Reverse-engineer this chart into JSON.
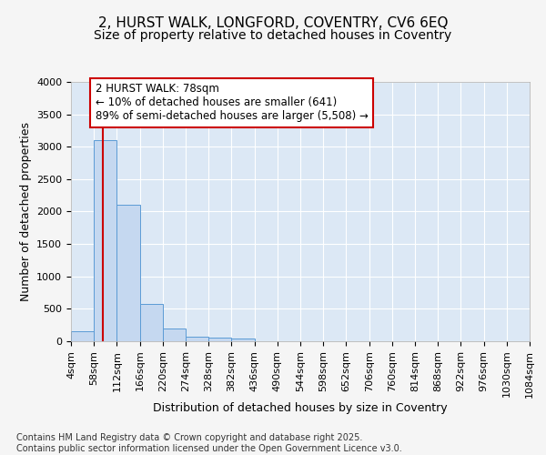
{
  "title1": "2, HURST WALK, LONGFORD, COVENTRY, CV6 6EQ",
  "title2": "Size of property relative to detached houses in Coventry",
  "xlabel": "Distribution of detached houses by size in Coventry",
  "ylabel": "Number of detached properties",
  "footnote1": "Contains HM Land Registry data © Crown copyright and database right 2025.",
  "footnote2": "Contains public sector information licensed under the Open Government Licence v3.0.",
  "bin_edges": [
    4,
    58,
    112,
    166,
    220,
    274,
    328,
    382,
    436,
    490,
    544,
    598,
    652,
    706,
    760,
    814,
    868,
    922,
    976,
    1030,
    1084
  ],
  "bar_heights": [
    150,
    3100,
    2100,
    580,
    200,
    70,
    50,
    40,
    0,
    0,
    0,
    0,
    0,
    0,
    0,
    0,
    0,
    0,
    0,
    0
  ],
  "bar_color": "#c5d8f0",
  "bar_edge_color": "#5b9bd5",
  "red_line_x": 78,
  "annotation_line1": "2 HURST WALK: 78sqm",
  "annotation_line2": "← 10% of detached houses are smaller (641)",
  "annotation_line3": "89% of semi-detached houses are larger (5,508) →",
  "annotation_box_facecolor": "#ffffff",
  "annotation_border_color": "#cc0000",
  "red_line_color": "#cc0000",
  "ylim_max": 4000,
  "yticks": [
    0,
    500,
    1000,
    1500,
    2000,
    2500,
    3000,
    3500,
    4000
  ],
  "fig_bg_color": "#f5f5f5",
  "plot_bg_color": "#dce8f5",
  "grid_color": "#ffffff",
  "title_fontsize": 11,
  "subtitle_fontsize": 10,
  "axis_label_fontsize": 9,
  "tick_fontsize": 8,
  "annotation_fontsize": 8.5,
  "footnote_fontsize": 7
}
